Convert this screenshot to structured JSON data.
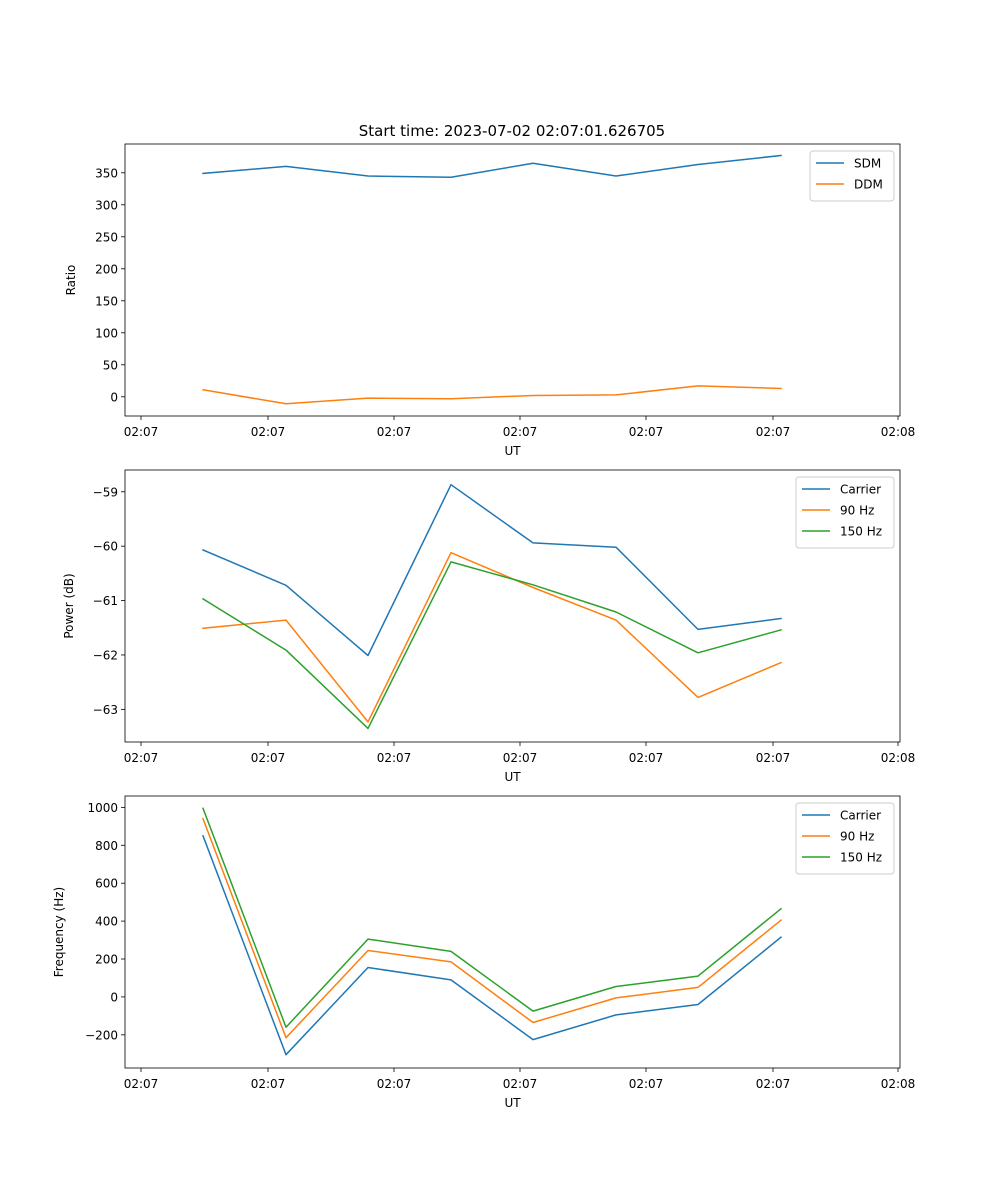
{
  "chart_data": [
    {
      "type": "line",
      "title": "Start time: 2023-07-02 02:07:01.626705",
      "xlabel": "UT",
      "ylabel": "Ratio",
      "x_tick_labels": [
        "02:07",
        "02:07",
        "02:07",
        "02:07",
        "02:07",
        "02:07",
        "02:08"
      ],
      "y_ticks": [
        0,
        50,
        100,
        150,
        200,
        250,
        300,
        350
      ],
      "ylim": [
        -30,
        395
      ],
      "legend_position": "top-right",
      "series": [
        {
          "name": "SDM",
          "color": "#1f77b4",
          "values": [
            349,
            360,
            345,
            343,
            365,
            345,
            363,
            377
          ]
        },
        {
          "name": "DDM",
          "color": "#ff7f0e",
          "values": [
            11,
            -11,
            -2,
            -3,
            2,
            3,
            17,
            13
          ]
        }
      ]
    },
    {
      "type": "line",
      "title": "",
      "xlabel": "UT",
      "ylabel": "Power (dB)",
      "x_tick_labels": [
        "02:07",
        "02:07",
        "02:07",
        "02:07",
        "02:07",
        "02:07",
        "02:08"
      ],
      "y_ticks": [
        -63,
        -62,
        -61,
        -60,
        -59
      ],
      "ylim": [
        -63.6,
        -58.6
      ],
      "legend_position": "top-right",
      "series": [
        {
          "name": "Carrier",
          "color": "#1f77b4",
          "values": [
            -60.07,
            -60.72,
            -62.01,
            -58.87,
            -59.94,
            -60.02,
            -61.53,
            -61.33
          ]
        },
        {
          "name": "90 Hz",
          "color": "#ff7f0e",
          "values": [
            -61.51,
            -61.36,
            -63.23,
            -60.12,
            -60.76,
            -61.36,
            -62.78,
            -62.14
          ]
        },
        {
          "name": "150 Hz",
          "color": "#2ca02c",
          "values": [
            -60.97,
            -61.91,
            -63.35,
            -60.29,
            -60.71,
            -61.21,
            -61.96,
            -61.54
          ]
        }
      ]
    },
    {
      "type": "line",
      "title": "",
      "xlabel": "UT",
      "ylabel": "Frequency (Hz)",
      "x_tick_labels": [
        "02:07",
        "02:07",
        "02:07",
        "02:07",
        "02:07",
        "02:07",
        "02:08"
      ],
      "y_ticks": [
        -200,
        0,
        200,
        400,
        600,
        800,
        1000
      ],
      "ylim": [
        -375,
        1060
      ],
      "legend_position": "top-right",
      "series": [
        {
          "name": "Carrier",
          "color": "#1f77b4",
          "values": [
            850,
            -305,
            155,
            90,
            -225,
            -95,
            -40,
            315
          ]
        },
        {
          "name": "90 Hz",
          "color": "#ff7f0e",
          "values": [
            940,
            -215,
            245,
            185,
            -135,
            -5,
            50,
            405
          ]
        },
        {
          "name": "150 Hz",
          "color": "#2ca02c",
          "values": [
            995,
            -160,
            305,
            240,
            -75,
            55,
            110,
            465
          ]
        }
      ]
    }
  ]
}
